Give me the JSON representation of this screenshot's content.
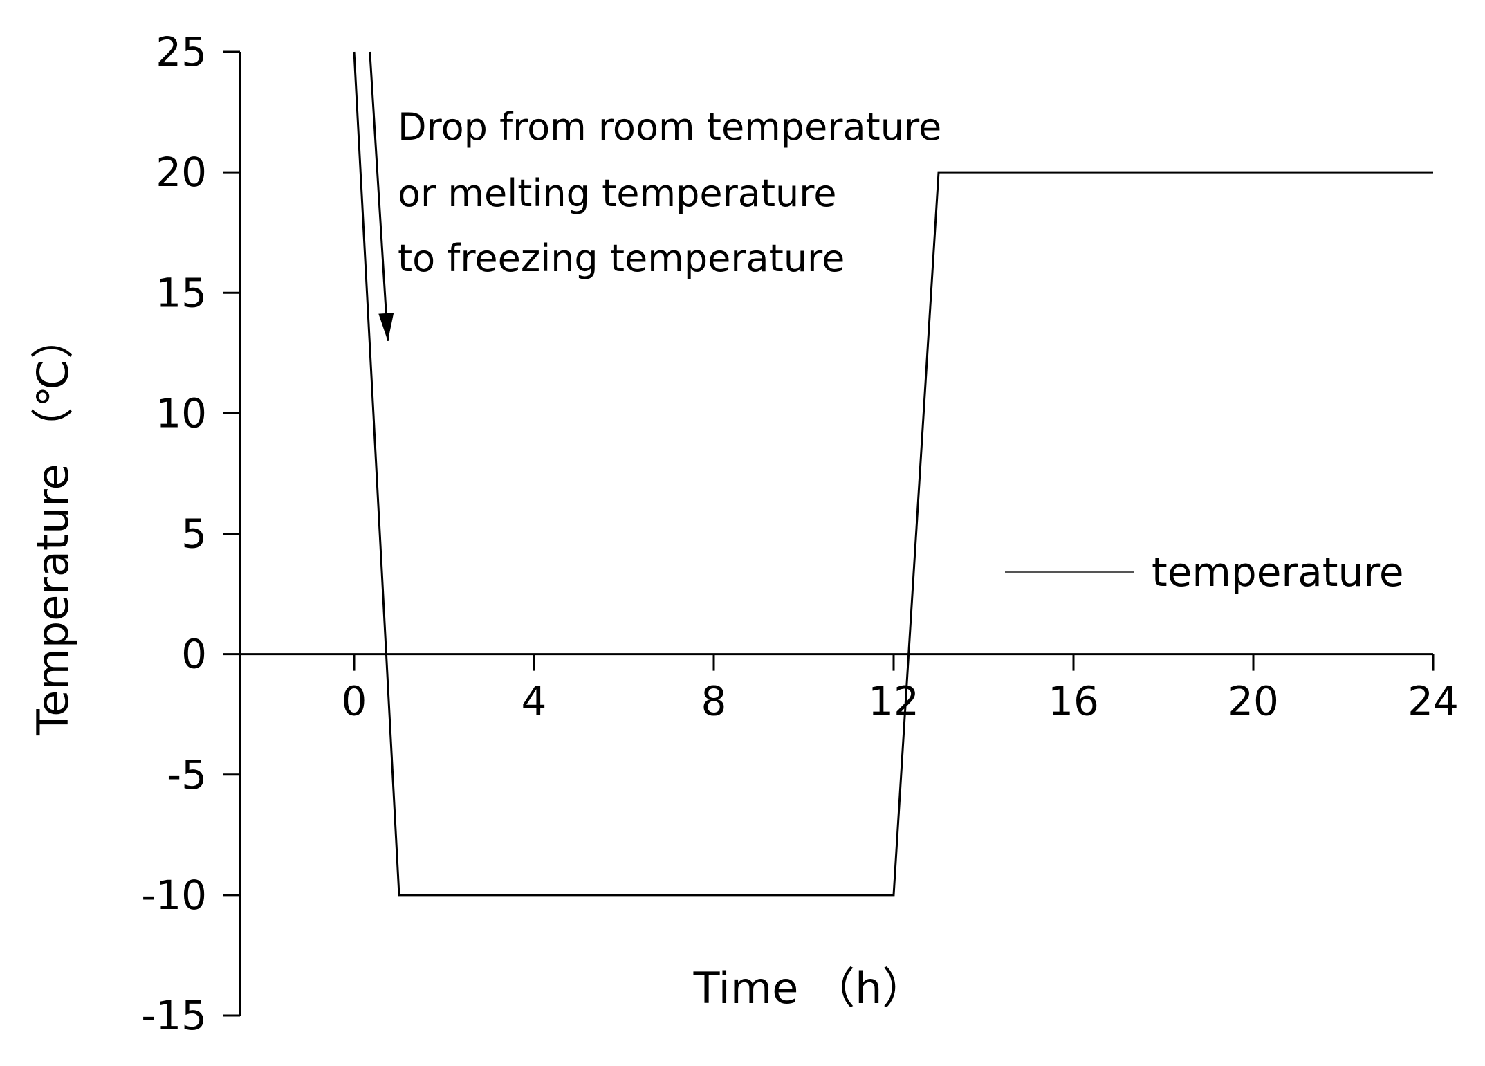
{
  "chart_data": {
    "type": "line",
    "title": "",
    "xlabel": "Time （h）",
    "ylabel": "Temperature （℃）",
    "xlim": [
      -5,
      24
    ],
    "ylim": [
      -15,
      25
    ],
    "x_ticks": [
      0,
      4,
      8,
      12,
      16,
      20,
      24
    ],
    "y_ticks": [
      25,
      20,
      15,
      10,
      5,
      0,
      -5,
      -10,
      -15
    ],
    "x_tick_labels": [
      "0",
      "4",
      "8",
      "12",
      "16",
      "20",
      "24"
    ],
    "y_tick_labels": [
      "25",
      "20",
      "15",
      "10",
      "5",
      "0",
      "-5",
      "-10",
      "-15"
    ],
    "grid": false,
    "legend_position": "right",
    "series": [
      {
        "name": "temperature",
        "color": "#000000",
        "x": [
          0,
          1,
          12,
          13,
          24
        ],
        "y": [
          25,
          -10,
          -10,
          20,
          20
        ]
      }
    ],
    "annotations": [
      {
        "lines": [
          "Drop from room temperature",
          " or melting temperature",
          "to freezing temperature"
        ],
        "arrow_from": [
          0.35,
          25
        ],
        "arrow_to": [
          0.75,
          13
        ]
      }
    ]
  }
}
